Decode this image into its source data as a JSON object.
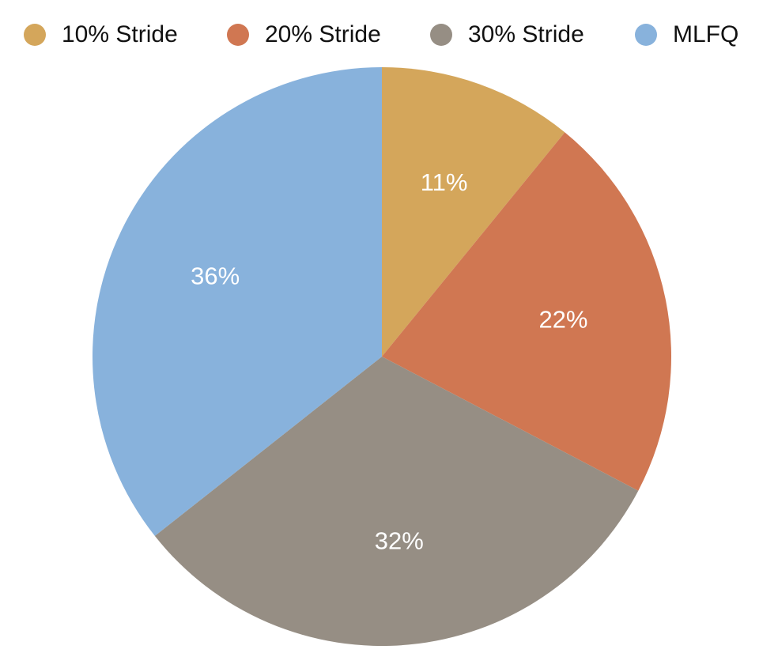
{
  "chart_data": {
    "type": "pie",
    "title": "",
    "legend_position": "top",
    "start_angle": "12 o'clock",
    "direction": "clockwise",
    "slices": [
      {
        "label": "10% Stride",
        "value": 11,
        "display": "11%",
        "color": "#d4a65b"
      },
      {
        "label": "20% Stride",
        "value": 22,
        "display": "22%",
        "color": "#d07752"
      },
      {
        "label": "30% Stride",
        "value": 32,
        "display": "32%",
        "color": "#968e84"
      },
      {
        "label": "MLFQ",
        "value": 36,
        "display": "36%",
        "color": "#88b2dc"
      }
    ]
  },
  "legend": {
    "items": [
      {
        "label": "10% Stride",
        "color": "#d4a65b"
      },
      {
        "label": "20% Stride",
        "color": "#d07752"
      },
      {
        "label": "30% Stride",
        "color": "#968e84"
      },
      {
        "label": "MLFQ",
        "color": "#88b2dc"
      }
    ]
  }
}
